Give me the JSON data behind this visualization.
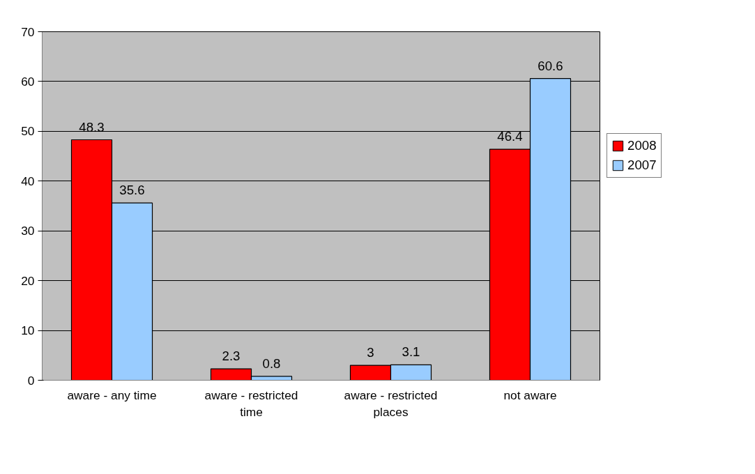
{
  "chart_data": {
    "type": "bar",
    "categories": [
      "aware - any time",
      "aware - restricted time",
      "aware - restricted places",
      "not aware"
    ],
    "series": [
      {
        "name": "2008",
        "color": "#ff0000",
        "values": [
          48.3,
          2.3,
          3,
          46.4
        ]
      },
      {
        "name": "2007",
        "color": "#99ccff",
        "values": [
          35.6,
          0.8,
          3.1,
          60.6
        ]
      }
    ],
    "ylim": [
      0,
      70
    ],
    "yticks": [
      0,
      10,
      20,
      30,
      40,
      50,
      60,
      70
    ],
    "grid": "y",
    "legend": "right",
    "data_labels": true
  }
}
